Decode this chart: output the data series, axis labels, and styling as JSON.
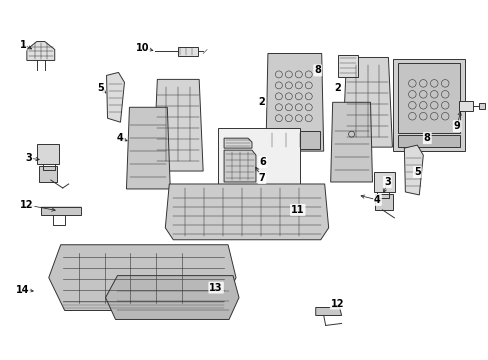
{
  "background_color": "#ffffff",
  "line_color": "#333333",
  "fig_width": 4.89,
  "fig_height": 3.6,
  "dpi": 100,
  "label_specs": [
    [
      "1",
      22,
      316
    ],
    [
      "5",
      100,
      272
    ],
    [
      "10",
      142,
      313
    ],
    [
      "8",
      318,
      290
    ],
    [
      "2",
      262,
      258
    ],
    [
      "2",
      338,
      272
    ],
    [
      "4",
      120,
      222
    ],
    [
      "6",
      263,
      198
    ],
    [
      "7",
      262,
      182
    ],
    [
      "3",
      28,
      202
    ],
    [
      "12",
      26,
      155
    ],
    [
      "11",
      298,
      150
    ],
    [
      "4",
      378,
      160
    ],
    [
      "3",
      388,
      178
    ],
    [
      "5",
      418,
      188
    ],
    [
      "8",
      428,
      222
    ],
    [
      "9",
      458,
      234
    ],
    [
      "12",
      338,
      56
    ],
    [
      "13",
      216,
      72
    ],
    [
      "14",
      22,
      70
    ]
  ]
}
